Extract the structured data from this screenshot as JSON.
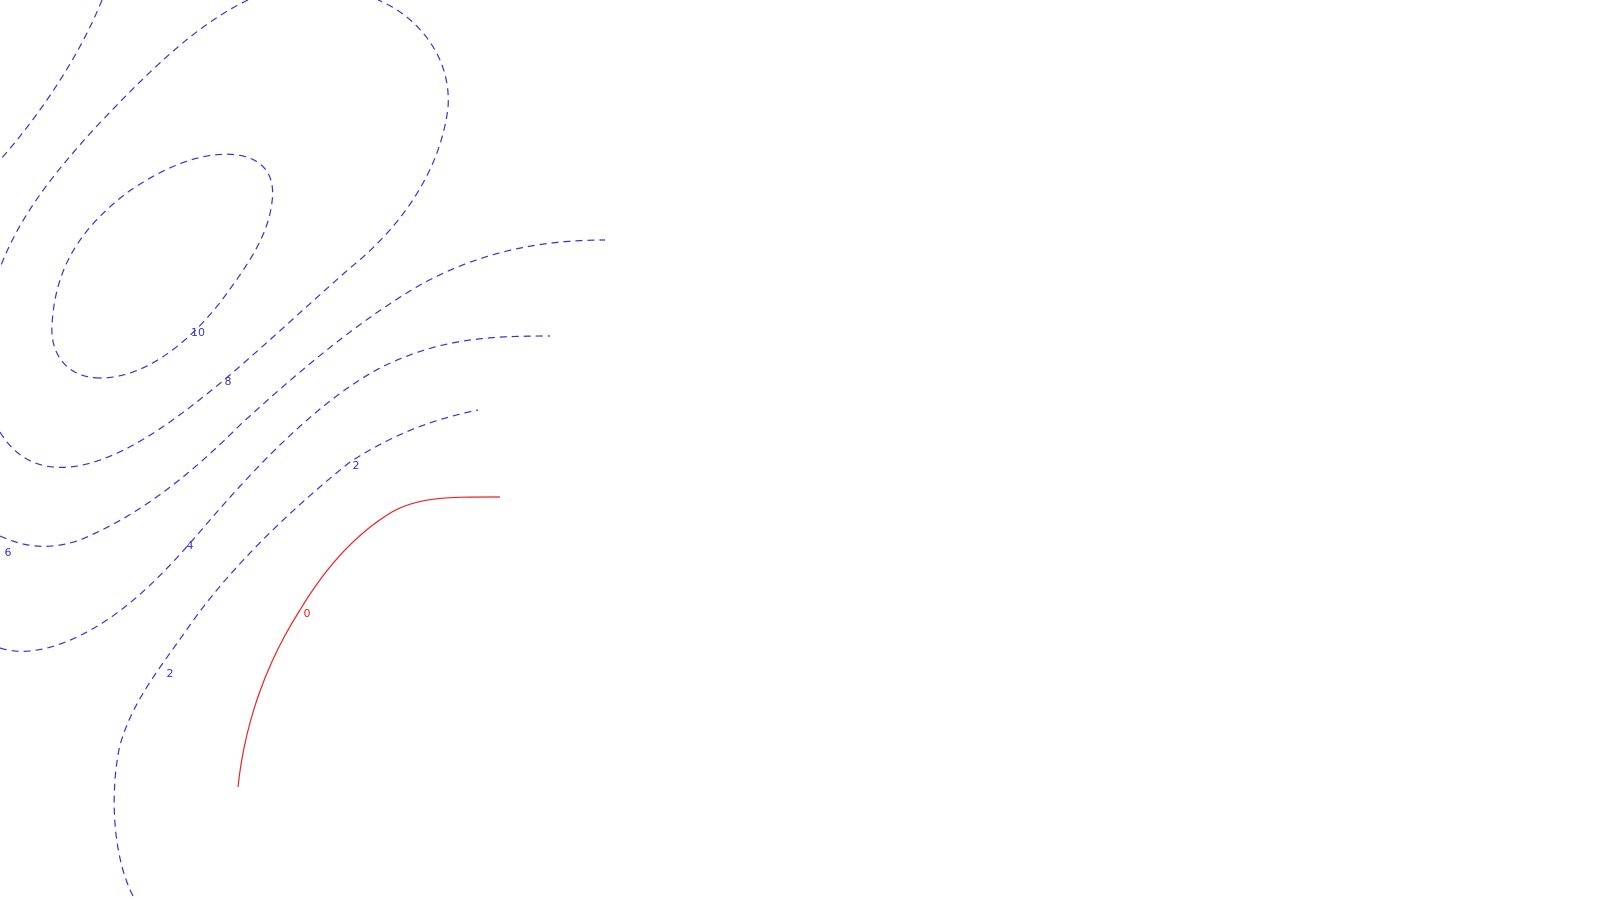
{
  "chart_data": {
    "type": "contour",
    "title": "",
    "xlabel": "",
    "ylabel": "",
    "grid": false,
    "legend": "none",
    "colors": {
      "negative": "#3333dd",
      "zero": "#ee2222"
    },
    "contours": [
      {
        "level": "10",
        "style": "dashed",
        "color": "#3333dd"
      },
      {
        "level": "8",
        "style": "dashed",
        "color": "#3333dd"
      },
      {
        "level": "6",
        "style": "dashed",
        "color": "#3333dd"
      },
      {
        "level": "4",
        "style": "dashed",
        "color": "#3333dd"
      },
      {
        "level": "2",
        "style": "dashed",
        "color": "#3333dd"
      },
      {
        "level": "0",
        "style": "solid",
        "color": "#ee2222"
      }
    ],
    "label_texts": [
      "10",
      "8",
      "6",
      "4",
      "2",
      "2",
      "0"
    ]
  }
}
